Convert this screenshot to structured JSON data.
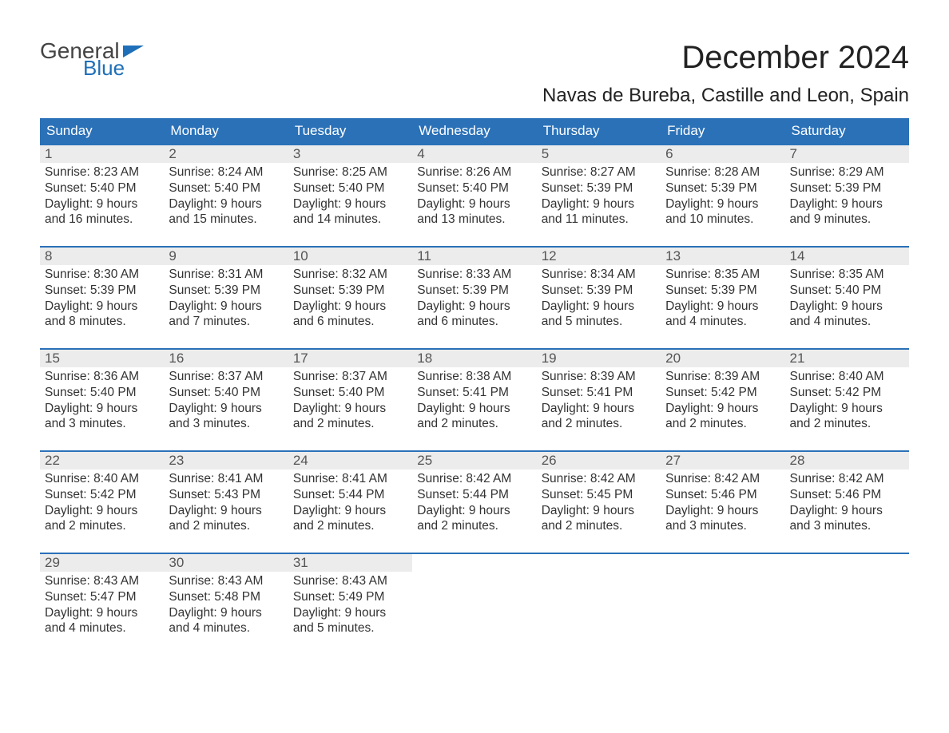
{
  "meta": {
    "type": "calendar",
    "aspect_ratio": "1188x918",
    "primary_color": "#2a71b8",
    "header_bg": "#2a71b8",
    "header_text_color": "#ffffff",
    "daynum_bg": "#ececec",
    "text_color": "#333333",
    "logo_blue": "#1e6fb8",
    "font_family": "Arial, Helvetica, sans-serif",
    "title_fontsize": 40,
    "location_fontsize": 24,
    "weekday_fontsize": 17,
    "body_fontsize": 15.5
  },
  "logo": {
    "text_general": "General",
    "text_blue": "Blue"
  },
  "title": "December 2024",
  "location": "Navas de Bureba, Castille and Leon, Spain",
  "weekdays": [
    "Sunday",
    "Monday",
    "Tuesday",
    "Wednesday",
    "Thursday",
    "Friday",
    "Saturday"
  ],
  "weeks": [
    [
      {
        "n": "1",
        "sunrise": "Sunrise: 8:23 AM",
        "sunset": "Sunset: 5:40 PM",
        "day1": "Daylight: 9 hours",
        "day2": "and 16 minutes."
      },
      {
        "n": "2",
        "sunrise": "Sunrise: 8:24 AM",
        "sunset": "Sunset: 5:40 PM",
        "day1": "Daylight: 9 hours",
        "day2": "and 15 minutes."
      },
      {
        "n": "3",
        "sunrise": "Sunrise: 8:25 AM",
        "sunset": "Sunset: 5:40 PM",
        "day1": "Daylight: 9 hours",
        "day2": "and 14 minutes."
      },
      {
        "n": "4",
        "sunrise": "Sunrise: 8:26 AM",
        "sunset": "Sunset: 5:40 PM",
        "day1": "Daylight: 9 hours",
        "day2": "and 13 minutes."
      },
      {
        "n": "5",
        "sunrise": "Sunrise: 8:27 AM",
        "sunset": "Sunset: 5:39 PM",
        "day1": "Daylight: 9 hours",
        "day2": "and 11 minutes."
      },
      {
        "n": "6",
        "sunrise": "Sunrise: 8:28 AM",
        "sunset": "Sunset: 5:39 PM",
        "day1": "Daylight: 9 hours",
        "day2": "and 10 minutes."
      },
      {
        "n": "7",
        "sunrise": "Sunrise: 8:29 AM",
        "sunset": "Sunset: 5:39 PM",
        "day1": "Daylight: 9 hours",
        "day2": "and 9 minutes."
      }
    ],
    [
      {
        "n": "8",
        "sunrise": "Sunrise: 8:30 AM",
        "sunset": "Sunset: 5:39 PM",
        "day1": "Daylight: 9 hours",
        "day2": "and 8 minutes."
      },
      {
        "n": "9",
        "sunrise": "Sunrise: 8:31 AM",
        "sunset": "Sunset: 5:39 PM",
        "day1": "Daylight: 9 hours",
        "day2": "and 7 minutes."
      },
      {
        "n": "10",
        "sunrise": "Sunrise: 8:32 AM",
        "sunset": "Sunset: 5:39 PM",
        "day1": "Daylight: 9 hours",
        "day2": "and 6 minutes."
      },
      {
        "n": "11",
        "sunrise": "Sunrise: 8:33 AM",
        "sunset": "Sunset: 5:39 PM",
        "day1": "Daylight: 9 hours",
        "day2": "and 6 minutes."
      },
      {
        "n": "12",
        "sunrise": "Sunrise: 8:34 AM",
        "sunset": "Sunset: 5:39 PM",
        "day1": "Daylight: 9 hours",
        "day2": "and 5 minutes."
      },
      {
        "n": "13",
        "sunrise": "Sunrise: 8:35 AM",
        "sunset": "Sunset: 5:39 PM",
        "day1": "Daylight: 9 hours",
        "day2": "and 4 minutes."
      },
      {
        "n": "14",
        "sunrise": "Sunrise: 8:35 AM",
        "sunset": "Sunset: 5:40 PM",
        "day1": "Daylight: 9 hours",
        "day2": "and 4 minutes."
      }
    ],
    [
      {
        "n": "15",
        "sunrise": "Sunrise: 8:36 AM",
        "sunset": "Sunset: 5:40 PM",
        "day1": "Daylight: 9 hours",
        "day2": "and 3 minutes."
      },
      {
        "n": "16",
        "sunrise": "Sunrise: 8:37 AM",
        "sunset": "Sunset: 5:40 PM",
        "day1": "Daylight: 9 hours",
        "day2": "and 3 minutes."
      },
      {
        "n": "17",
        "sunrise": "Sunrise: 8:37 AM",
        "sunset": "Sunset: 5:40 PM",
        "day1": "Daylight: 9 hours",
        "day2": "and 2 minutes."
      },
      {
        "n": "18",
        "sunrise": "Sunrise: 8:38 AM",
        "sunset": "Sunset: 5:41 PM",
        "day1": "Daylight: 9 hours",
        "day2": "and 2 minutes."
      },
      {
        "n": "19",
        "sunrise": "Sunrise: 8:39 AM",
        "sunset": "Sunset: 5:41 PM",
        "day1": "Daylight: 9 hours",
        "day2": "and 2 minutes."
      },
      {
        "n": "20",
        "sunrise": "Sunrise: 8:39 AM",
        "sunset": "Sunset: 5:42 PM",
        "day1": "Daylight: 9 hours",
        "day2": "and 2 minutes."
      },
      {
        "n": "21",
        "sunrise": "Sunrise: 8:40 AM",
        "sunset": "Sunset: 5:42 PM",
        "day1": "Daylight: 9 hours",
        "day2": "and 2 minutes."
      }
    ],
    [
      {
        "n": "22",
        "sunrise": "Sunrise: 8:40 AM",
        "sunset": "Sunset: 5:42 PM",
        "day1": "Daylight: 9 hours",
        "day2": "and 2 minutes."
      },
      {
        "n": "23",
        "sunrise": "Sunrise: 8:41 AM",
        "sunset": "Sunset: 5:43 PM",
        "day1": "Daylight: 9 hours",
        "day2": "and 2 minutes."
      },
      {
        "n": "24",
        "sunrise": "Sunrise: 8:41 AM",
        "sunset": "Sunset: 5:44 PM",
        "day1": "Daylight: 9 hours",
        "day2": "and 2 minutes."
      },
      {
        "n": "25",
        "sunrise": "Sunrise: 8:42 AM",
        "sunset": "Sunset: 5:44 PM",
        "day1": "Daylight: 9 hours",
        "day2": "and 2 minutes."
      },
      {
        "n": "26",
        "sunrise": "Sunrise: 8:42 AM",
        "sunset": "Sunset: 5:45 PM",
        "day1": "Daylight: 9 hours",
        "day2": "and 2 minutes."
      },
      {
        "n": "27",
        "sunrise": "Sunrise: 8:42 AM",
        "sunset": "Sunset: 5:46 PM",
        "day1": "Daylight: 9 hours",
        "day2": "and 3 minutes."
      },
      {
        "n": "28",
        "sunrise": "Sunrise: 8:42 AM",
        "sunset": "Sunset: 5:46 PM",
        "day1": "Daylight: 9 hours",
        "day2": "and 3 minutes."
      }
    ],
    [
      {
        "n": "29",
        "sunrise": "Sunrise: 8:43 AM",
        "sunset": "Sunset: 5:47 PM",
        "day1": "Daylight: 9 hours",
        "day2": "and 4 minutes."
      },
      {
        "n": "30",
        "sunrise": "Sunrise: 8:43 AM",
        "sunset": "Sunset: 5:48 PM",
        "day1": "Daylight: 9 hours",
        "day2": "and 4 minutes."
      },
      {
        "n": "31",
        "sunrise": "Sunrise: 8:43 AM",
        "sunset": "Sunset: 5:49 PM",
        "day1": "Daylight: 9 hours",
        "day2": "and 5 minutes."
      },
      {
        "empty": true
      },
      {
        "empty": true
      },
      {
        "empty": true
      },
      {
        "empty": true
      }
    ]
  ]
}
